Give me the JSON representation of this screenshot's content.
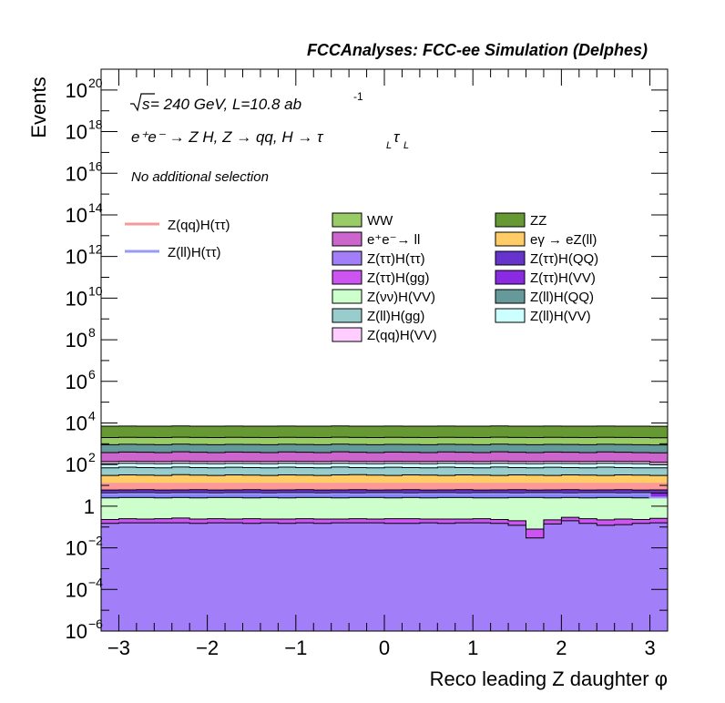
{
  "header": {
    "title": "FCCAnalyses: FCC-ee Simulation (Delphes)"
  },
  "annotations": {
    "sqrt_s": "s",
    "energy": " = 240 GeV, L=10.8 ab",
    "lumi_exp": "-1",
    "process_main": "e⁺e⁻ → Z H, Z → qq, H → τ",
    "tau_sub": "L",
    "tau2": "τ",
    "tau2_sub": "L",
    "selection": "No additional selection"
  },
  "colors": {
    "frame": "#000000",
    "signal_qq": "#f59a9a",
    "signal_ll": "#9a9af5"
  },
  "chart_data": {
    "type": "area",
    "ylabel": "Events",
    "xlabel": "Reco leading Z daughter φ",
    "xlim": [
      -3.2,
      3.2
    ],
    "ylim": [
      1e-06,
      1e+21
    ],
    "yscale": "log",
    "x_ticks": [
      {
        "v": -3,
        "label": "−3"
      },
      {
        "v": -2,
        "label": "−2"
      },
      {
        "v": -1,
        "label": "−1"
      },
      {
        "v": 0,
        "label": "0"
      },
      {
        "v": 1,
        "label": "1"
      },
      {
        "v": 2,
        "label": "2"
      },
      {
        "v": 3,
        "label": "3"
      }
    ],
    "y_ticks": [
      {
        "exp": 20,
        "base": "10",
        "sup": "20"
      },
      {
        "exp": 18,
        "base": "10",
        "sup": "18"
      },
      {
        "exp": 16,
        "base": "10",
        "sup": "16"
      },
      {
        "exp": 14,
        "base": "10",
        "sup": "14"
      },
      {
        "exp": 12,
        "base": "10",
        "sup": "12"
      },
      {
        "exp": 10,
        "base": "10",
        "sup": "10"
      },
      {
        "exp": 8,
        "base": "10",
        "sup": "8"
      },
      {
        "exp": 6,
        "base": "10",
        "sup": "6"
      },
      {
        "exp": 4,
        "base": "10",
        "sup": "4"
      },
      {
        "exp": 2,
        "base": "10",
        "sup": "2"
      },
      {
        "exp": 0,
        "base": "1",
        "sup": ""
      },
      {
        "exp": -2,
        "base": "10",
        "sup": "−2"
      },
      {
        "exp": -4,
        "base": "10",
        "sup": "−4"
      },
      {
        "exp": -6,
        "base": "10",
        "sup": "−6"
      }
    ],
    "bins": 32,
    "stack_order": "bottom-to-top",
    "stack_tops": [
      {
        "name": "Z(ττ)H(ττ)",
        "color": "#a27ef8",
        "values": [
          0.15,
          0.16,
          0.16,
          0.16,
          0.16,
          0.15,
          0.16,
          0.16,
          0.15,
          0.16,
          0.15,
          0.16,
          0.15,
          0.16,
          0.16,
          0.16,
          0.15,
          0.15,
          0.16,
          0.15,
          0.16,
          0.16,
          0.15,
          0.12,
          0.03,
          0.14,
          0.2,
          0.15,
          0.12,
          0.13,
          0.15,
          0.16
        ]
      },
      {
        "name": "Z(ττ)H(gg)",
        "color": "#cc55f2",
        "values": [
          0.23,
          0.25,
          0.24,
          0.25,
          0.27,
          0.24,
          0.25,
          0.24,
          0.25,
          0.24,
          0.24,
          0.25,
          0.24,
          0.24,
          0.25,
          0.24,
          0.25,
          0.25,
          0.24,
          0.24,
          0.24,
          0.25,
          0.23,
          0.2,
          0.08,
          0.22,
          0.29,
          0.25,
          0.22,
          0.24,
          0.23,
          0.26
        ]
      },
      {
        "name": "Z(νν)H(VV)",
        "color": "#ccffcc",
        "values": [
          2.5,
          2.6,
          2.6,
          2.5,
          2.6,
          2.5,
          2.6,
          2.6,
          2.5,
          2.6,
          2.5,
          2.6,
          2.6,
          2.5,
          2.6,
          2.6,
          2.5,
          2.6,
          2.5,
          2.6,
          2.6,
          2.5,
          2.5,
          2.6,
          2.6,
          2.5,
          2.6,
          2.5,
          2.6,
          2.6,
          2.5,
          2.6
        ]
      },
      {
        "name": "Z(ll)H(ττ)",
        "color": "#7f7ff8",
        "values": [
          3.8,
          3.9,
          3.9,
          3.8,
          3.9,
          3.9,
          3.8,
          3.9,
          3.9,
          3.8,
          3.9,
          3.9,
          3.8,
          3.9,
          3.8,
          3.9,
          3.9,
          3.8,
          3.9,
          3.9,
          3.8,
          3.9,
          3.9,
          3.8,
          3.9,
          3.9,
          3.8,
          3.9,
          3.9,
          3.8,
          3.9,
          2.6
        ]
      },
      {
        "name": "Z(ττ)H(VV)",
        "color": "#8a2be2",
        "values": [
          4.3,
          4.4,
          4.4,
          4.3,
          4.4,
          4.4,
          4.3,
          4.4,
          4.4,
          4.3,
          4.4,
          4.4,
          4.3,
          4.4,
          4.3,
          4.4,
          4.4,
          4.3,
          4.4,
          4.4,
          4.3,
          4.4,
          4.4,
          4.3,
          4.4,
          4.4,
          4.3,
          4.4,
          4.4,
          4.3,
          4.4,
          4.3
        ]
      },
      {
        "name": "Z(ττ)H(QQ)",
        "color": "#6633cc",
        "values": [
          6.0,
          6.1,
          6.2,
          6.0,
          6.1,
          6.2,
          6.0,
          6.1,
          6.2,
          6.0,
          6.1,
          6.2,
          6.0,
          6.1,
          6.2,
          6.0,
          6.1,
          6.2,
          6.0,
          6.1,
          6.2,
          6.0,
          6.1,
          6.2,
          6.0,
          6.1,
          6.2,
          6.0,
          6.1,
          6.2,
          6.0,
          6.1
        ]
      },
      {
        "name": "Z(qq)H(ττ)",
        "color": "#ff9999",
        "values": [
          12,
          12,
          12,
          12,
          12,
          12,
          12,
          12,
          12,
          12,
          12,
          12,
          12,
          12,
          12,
          12,
          12,
          12,
          12,
          12,
          12,
          12,
          12,
          12,
          12,
          12,
          12,
          12,
          12,
          12,
          12,
          12
        ]
      },
      {
        "name": "eγ → eZ(ll)",
        "color": "#ffcc66",
        "values": [
          30,
          32,
          31,
          30,
          33,
          31,
          30,
          32,
          31,
          30,
          32,
          31,
          30,
          32,
          33,
          31,
          30,
          32,
          31,
          30,
          32,
          31,
          30,
          32,
          31,
          30,
          32,
          31,
          30,
          32,
          31,
          30
        ]
      },
      {
        "name": "Z(ll)H(gg)",
        "color": "#99cccc",
        "values": [
          70,
          75,
          72,
          70,
          76,
          72,
          70,
          74,
          72,
          70,
          75,
          72,
          70,
          76,
          72,
          70,
          74,
          72,
          70,
          75,
          72,
          70,
          76,
          72,
          70,
          74,
          72,
          70,
          75,
          72,
          70,
          70
        ]
      },
      {
        "name": "Z(ll)H(VV)",
        "color": "#ccffff",
        "values": [
          110,
          115,
          112,
          110,
          116,
          112,
          110,
          114,
          112,
          110,
          115,
          112,
          110,
          116,
          112,
          110,
          114,
          112,
          110,
          115,
          112,
          110,
          116,
          112,
          110,
          114,
          112,
          110,
          115,
          112,
          110,
          100
        ]
      },
      {
        "name": "Z(qq)H(VV)",
        "color": "#ffccff",
        "values": [
          140,
          145,
          142,
          140,
          146,
          142,
          140,
          144,
          142,
          140,
          145,
          142,
          140,
          146,
          142,
          140,
          144,
          142,
          140,
          145,
          142,
          140,
          146,
          142,
          140,
          144,
          142,
          140,
          145,
          142,
          140,
          130
        ]
      },
      {
        "name": "e⁺e⁻ → ll",
        "color": "#cc66cc",
        "values": [
          380,
          400,
          390,
          380,
          410,
          390,
          380,
          400,
          390,
          380,
          405,
          390,
          380,
          410,
          390,
          380,
          400,
          390,
          380,
          405,
          390,
          380,
          410,
          390,
          380,
          400,
          390,
          380,
          405,
          390,
          380,
          370
        ]
      },
      {
        "name": "Z(ll)H(QQ)",
        "color": "#669999",
        "values": [
          900,
          950,
          920,
          900,
          960,
          920,
          900,
          940,
          920,
          900,
          950,
          920,
          900,
          960,
          920,
          900,
          940,
          920,
          900,
          950,
          920,
          900,
          960,
          920,
          900,
          940,
          920,
          900,
          950,
          920,
          900,
          880
        ]
      },
      {
        "name": "WW",
        "color": "#99cc66",
        "values": [
          2000,
          2050,
          2020,
          2000,
          2060,
          2020,
          2000,
          2040,
          2020,
          2000,
          2050,
          2020,
          2000,
          2060,
          2020,
          2000,
          2040,
          2020,
          2000,
          2050,
          2020,
          2000,
          2060,
          2020,
          2000,
          2040,
          2020,
          2000,
          2050,
          2020,
          2000,
          1950
        ]
      },
      {
        "name": "ZZ",
        "color": "#669933",
        "values": [
          7000,
          7100,
          7050,
          7000,
          7150,
          7050,
          7000,
          7100,
          7050,
          7000,
          7100,
          7050,
          7000,
          7150,
          7050,
          7000,
          7100,
          7050,
          7000,
          7100,
          7050,
          7000,
          7150,
          7050,
          7000,
          7100,
          7050,
          7000,
          7100,
          7050,
          7000,
          6900
        ]
      }
    ],
    "signal_lines": [
      {
        "name": "Z(qq)H(ττ)",
        "color": "#f59a9a"
      },
      {
        "name": "Z(ll)H(ττ)",
        "color": "#9a9af5"
      }
    ],
    "legend_fill": [
      {
        "label": "WW",
        "color": "#99cc66"
      },
      {
        "label": "ZZ",
        "color": "#669933"
      },
      {
        "label": "e⁺e⁻→ ll",
        "color": "#cc66cc"
      },
      {
        "label": "eγ → eZ(ll)",
        "color": "#ffcc66"
      },
      {
        "label": "Z(ττ)H(ττ)",
        "color": "#a27ef8"
      },
      {
        "label": "Z(ττ)H(QQ)",
        "color": "#6633cc"
      },
      {
        "label": "Z(ττ)H(gg)",
        "color": "#cc55f2"
      },
      {
        "label": "Z(ττ)H(VV)",
        "color": "#8a2be2"
      },
      {
        "label": "Z(νν)H(VV)",
        "color": "#ccffcc"
      },
      {
        "label": "Z(ll)H(QQ)",
        "color": "#669999"
      },
      {
        "label": "Z(ll)H(gg)",
        "color": "#99cccc"
      },
      {
        "label": "Z(ll)H(VV)",
        "color": "#ccffff"
      },
      {
        "label": "Z(qq)H(VV)",
        "color": "#ffccff"
      }
    ],
    "legend_lines": [
      {
        "label": "Z(qq)H(ττ)",
        "color": "#f59a9a"
      },
      {
        "label": "Z(ll)H(ττ)",
        "color": "#9a9af5"
      }
    ],
    "legend_placement": "top",
    "grid": false
  }
}
